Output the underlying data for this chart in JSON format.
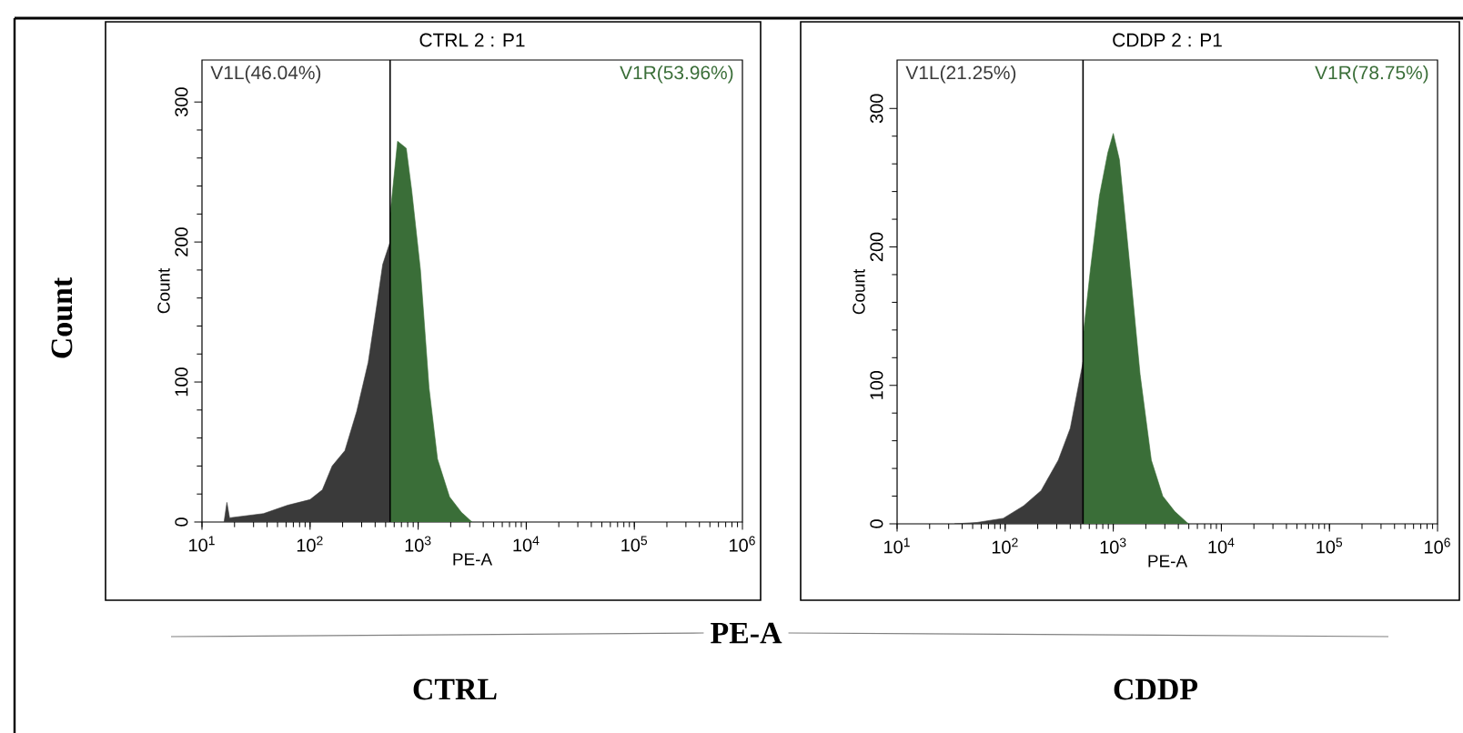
{
  "chart_data": [
    {
      "type": "area",
      "title": "CTRL 2 : P1",
      "xlabel": "PE-A",
      "ylabel": "Count",
      "log": "x",
      "annotations": [
        "CTRL",
        "Count",
        "PE-A"
      ],
      "xlim": [
        10,
        1000000
      ],
      "ylim": [
        0,
        330
      ],
      "xticks": [
        {
          "value": 10,
          "label": "10$^{1}$"
        },
        {
          "value": 100,
          "label": "10$^{2}$"
        },
        {
          "value": 1000,
          "label": "10$^{3}$"
        },
        {
          "value": 10000,
          "label": "10$^{4}$"
        },
        {
          "value": 100000,
          "label": "10$^{5}$"
        },
        {
          "value": 1000000,
          "label": "10$^{6}$"
        }
      ],
      "yticks": [
        0,
        100,
        200,
        300
      ],
      "ref_lines": [
        {
          "axis": "x",
          "value": 550,
          "color": "#000000"
        }
      ],
      "series": [
        {
          "name": "V1L(46.04%)",
          "color": "#3a3a3a",
          "x": [
            16,
            17,
            18,
            37,
            62,
            100,
            130,
            160,
            210,
            270,
            345,
            420,
            470,
            550
          ],
          "values": [
            0,
            14,
            3,
            6,
            12,
            16,
            23,
            40,
            51,
            79,
            114,
            158,
            184,
            200
          ]
        },
        {
          "name": "V1R(53.96%)",
          "color": "#3a6e38",
          "x": [
            550,
            645,
            776,
            871,
            1050,
            1260,
            1510,
            1950,
            2510,
            3150
          ],
          "values": [
            219,
            272,
            267,
            237,
            180,
            96,
            45,
            18,
            7,
            0
          ]
        }
      ]
    },
    {
      "type": "area",
      "title": "CDDP 2 : P1",
      "xlabel": "PE-A",
      "ylabel": "Count",
      "log": "x",
      "annotations": [
        "CDDP"
      ],
      "xlim": [
        10,
        1000000
      ],
      "ylim": [
        0,
        335
      ],
      "xticks": [
        {
          "value": 10,
          "label": "10$^{1}$"
        },
        {
          "value": 100,
          "label": "10$^{2}$"
        },
        {
          "value": 1000,
          "label": "10$^{3}$"
        },
        {
          "value": 10000,
          "label": "10$^{4}$"
        },
        {
          "value": 100000,
          "label": "10$^{5}$"
        },
        {
          "value": 1000000,
          "label": "10$^{6}$"
        }
      ],
      "yticks": [
        0,
        100,
        200,
        300
      ],
      "ref_lines": [
        {
          "axis": "x",
          "value": 525,
          "color": "#000000"
        }
      ],
      "series": [
        {
          "name": "V1L(21.25%)",
          "color": "#3a3a3a",
          "x": [
            34,
            55,
            96,
            148,
            215,
            310,
            400,
            525
          ],
          "values": [
            0,
            1,
            4,
            13,
            24,
            46,
            69,
            117
          ]
        },
        {
          "name": "V1R(78.75%)",
          "color": "#3a6e38",
          "x": [
            525,
            615,
            745,
            890,
            1000,
            1140,
            1380,
            1770,
            2250,
            2870,
            3700,
            4800,
            5000
          ],
          "values": [
            135,
            184,
            237,
            268,
            282,
            263,
            197,
            108,
            46,
            20,
            9,
            1,
            0
          ]
        }
      ]
    }
  ]
}
